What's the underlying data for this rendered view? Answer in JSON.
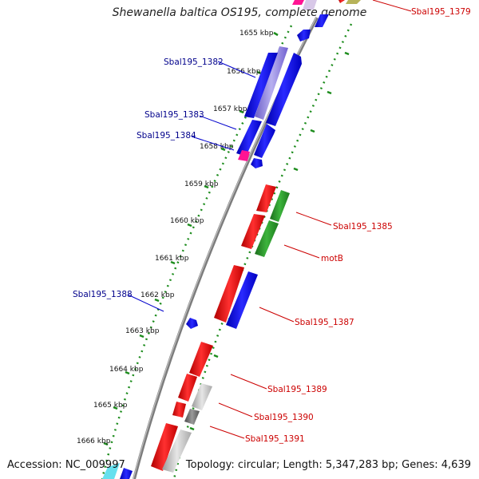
{
  "title": "Shewanella baltica OS195, complete genome",
  "footer": {
    "accession": "Accession: NC_009997",
    "summary": "Topology: circular; Length: 5,347,283 bp; Genes: 4,639"
  },
  "colors": {
    "forward_gene": "#ff0000",
    "reverse_gene": "#0000ff",
    "green_gene": "#2a9a2a",
    "gray_gene": "#c8c8c8",
    "dark_gene": "#707070",
    "magenta_gene": "#ff1493",
    "tick_green": "#1c8c1c",
    "backbone": "#8c8c8c",
    "label_blue": "#00008b",
    "label_red": "#cc0000"
  },
  "kbp_ticks": [
    "1655 kbp",
    "1656 kbp",
    "1657 kbp",
    "1658 kbp",
    "1659 kbp",
    "1660 kbp",
    "1661 kbp",
    "1662 kbp",
    "1663 kbp",
    "1664 kbp",
    "1665 kbp",
    "1666 kbp"
  ],
  "left_labels": [
    "Sbal195_1382",
    "Sbal195_1383",
    "Sbal195_1384",
    "Sbal195_1388"
  ],
  "right_labels": [
    "Sbal195_1379",
    "Sbal195_1385",
    "motB",
    "Sbal195_1387",
    "Sbal195_1389",
    "Sbal195_1390",
    "Sbal195_1391"
  ]
}
